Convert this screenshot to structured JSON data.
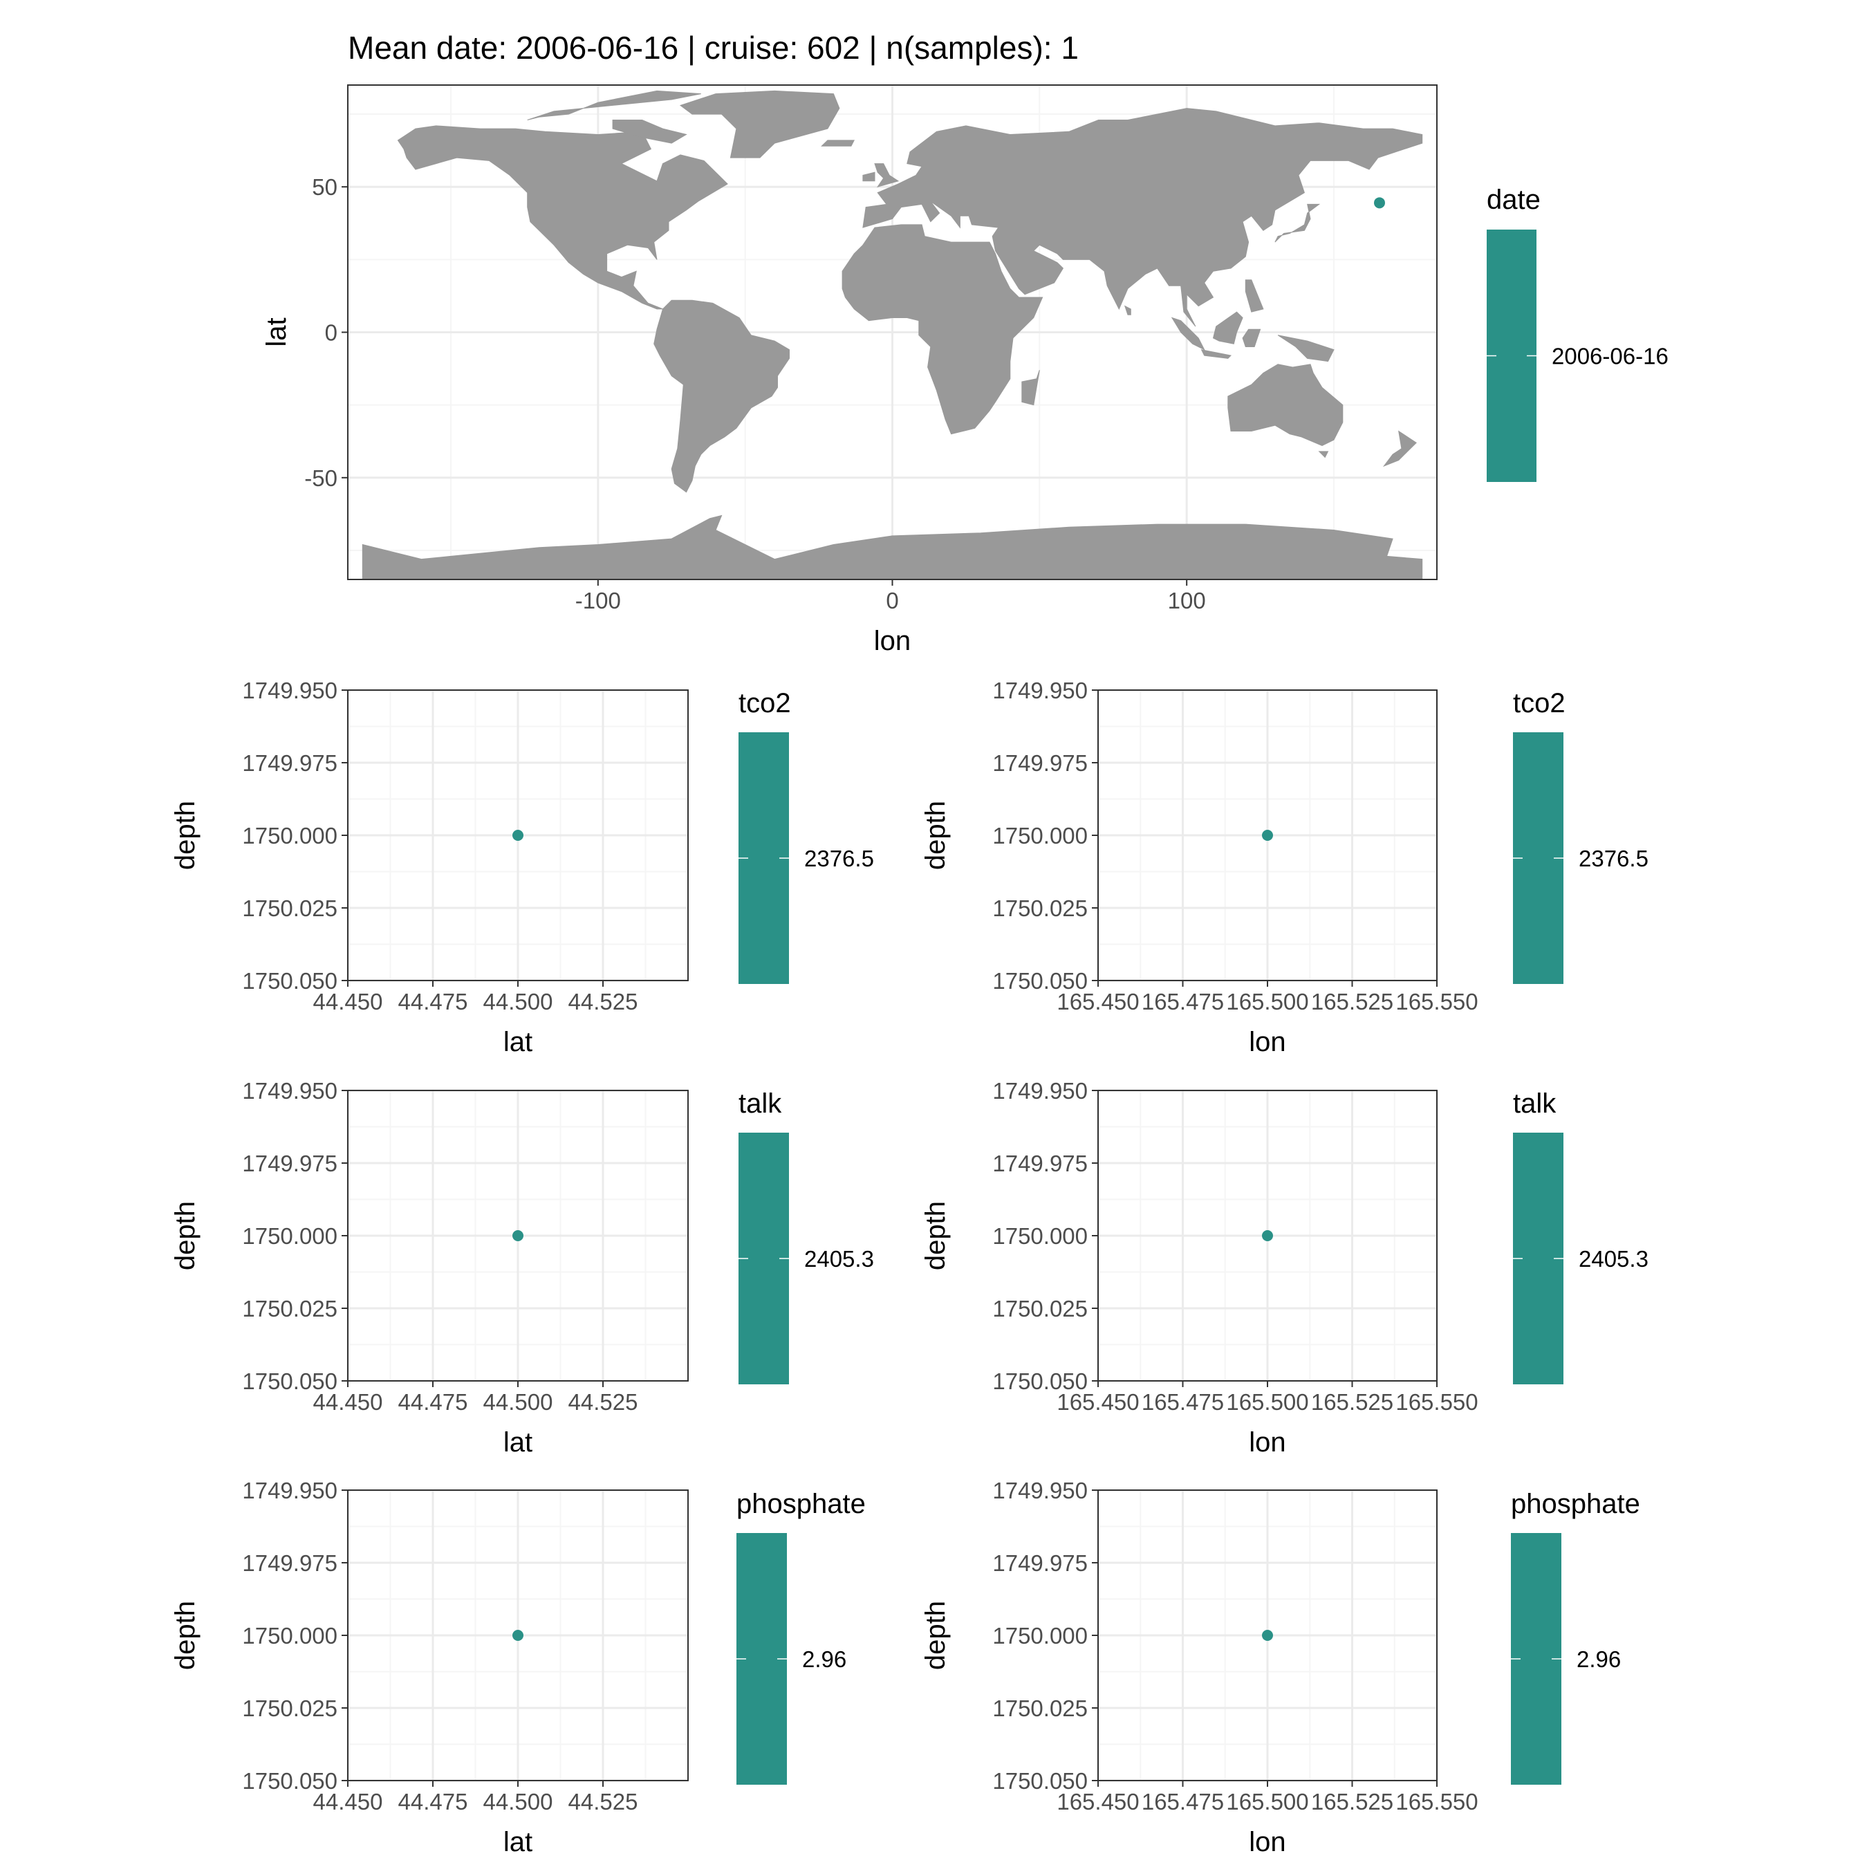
{
  "title": "Mean date: 2006-06-16 | cruise: 602 | n(samples): 1",
  "colors": {
    "point": "#2a9187",
    "land": "#999999",
    "grid_major": "#ebebeb",
    "grid_minor": "#f5f5f5",
    "frame": "#333333",
    "tick_text": "#4d4d4d",
    "background": "#ffffff"
  },
  "chart_data": [
    {
      "id": "map",
      "type": "scatter",
      "background": "world-land-map",
      "xlabel": "lon",
      "ylabel": "lat",
      "xlim": [
        -185,
        185
      ],
      "ylim": [
        -85,
        85
      ],
      "x_ticks": [
        -100,
        0,
        100
      ],
      "x_tick_labels": [
        "-100",
        "0",
        "100"
      ],
      "y_ticks": [
        50,
        0,
        -50
      ],
      "y_tick_labels": [
        "50",
        "0",
        "-50"
      ],
      "y_reversed": false,
      "grid": true,
      "points": [
        {
          "x": 165.5,
          "y": 44.5
        }
      ],
      "legend": {
        "title": "date",
        "label": "2006-06-16",
        "placement": "right"
      }
    },
    {
      "id": "tco2-lat",
      "type": "scatter",
      "xlabel": "lat",
      "ylabel": "depth",
      "xlim": [
        44.45,
        44.55
      ],
      "ylim": [
        1749.95,
        1750.05
      ],
      "y_reversed": true,
      "x_ticks": [
        44.45,
        44.475,
        44.5,
        44.525
      ],
      "x_tick_labels": [
        "44.450",
        "44.475",
        "44.500",
        "44.525"
      ],
      "y_ticks": [
        1749.95,
        1749.975,
        1750,
        1750.025,
        1750.05
      ],
      "y_tick_labels": [
        "1749.950",
        "1749.975",
        "1750.000",
        "1750.025",
        "1750.050"
      ],
      "grid": true,
      "points": [
        {
          "x": 44.5,
          "y": 1750.0
        }
      ],
      "legend": {
        "title": "tco2",
        "label": "2376.5",
        "placement": "right"
      }
    },
    {
      "id": "tco2-lon",
      "type": "scatter",
      "xlabel": "lon",
      "ylabel": "depth",
      "xlim": [
        165.45,
        165.55
      ],
      "ylim": [
        1749.95,
        1750.05
      ],
      "y_reversed": true,
      "x_ticks": [
        165.45,
        165.475,
        165.5,
        165.525,
        165.55
      ],
      "x_tick_labels": [
        "165.450",
        "165.475",
        "165.500",
        "165.525",
        "165.550"
      ],
      "y_ticks": [
        1749.95,
        1749.975,
        1750,
        1750.025,
        1750.05
      ],
      "y_tick_labels": [
        "1749.950",
        "1749.975",
        "1750.000",
        "1750.025",
        "1750.050"
      ],
      "grid": true,
      "points": [
        {
          "x": 165.5,
          "y": 1750.0
        }
      ],
      "legend": {
        "title": "tco2",
        "label": "2376.5",
        "placement": "right"
      }
    },
    {
      "id": "talk-lat",
      "type": "scatter",
      "xlabel": "lat",
      "ylabel": "depth",
      "xlim": [
        44.45,
        44.55
      ],
      "ylim": [
        1749.95,
        1750.05
      ],
      "y_reversed": true,
      "x_ticks": [
        44.45,
        44.475,
        44.5,
        44.525
      ],
      "x_tick_labels": [
        "44.450",
        "44.475",
        "44.500",
        "44.525"
      ],
      "y_ticks": [
        1749.95,
        1749.975,
        1750,
        1750.025,
        1750.05
      ],
      "y_tick_labels": [
        "1749.950",
        "1749.975",
        "1750.000",
        "1750.025",
        "1750.050"
      ],
      "grid": true,
      "points": [
        {
          "x": 44.5,
          "y": 1750.0
        }
      ],
      "legend": {
        "title": "talk",
        "label": "2405.3",
        "placement": "right"
      }
    },
    {
      "id": "talk-lon",
      "type": "scatter",
      "xlabel": "lon",
      "ylabel": "depth",
      "xlim": [
        165.45,
        165.55
      ],
      "ylim": [
        1749.95,
        1750.05
      ],
      "y_reversed": true,
      "x_ticks": [
        165.45,
        165.475,
        165.5,
        165.525,
        165.55
      ],
      "x_tick_labels": [
        "165.450",
        "165.475",
        "165.500",
        "165.525",
        "165.550"
      ],
      "y_ticks": [
        1749.95,
        1749.975,
        1750,
        1750.025,
        1750.05
      ],
      "y_tick_labels": [
        "1749.950",
        "1749.975",
        "1750.000",
        "1750.025",
        "1750.050"
      ],
      "grid": true,
      "points": [
        {
          "x": 165.5,
          "y": 1750.0
        }
      ],
      "legend": {
        "title": "talk",
        "label": "2405.3",
        "placement": "right"
      }
    },
    {
      "id": "phosphate-lat",
      "type": "scatter",
      "xlabel": "lat",
      "ylabel": "depth",
      "xlim": [
        44.45,
        44.55
      ],
      "ylim": [
        1749.95,
        1750.05
      ],
      "y_reversed": true,
      "x_ticks": [
        44.45,
        44.475,
        44.5,
        44.525
      ],
      "x_tick_labels": [
        "44.450",
        "44.475",
        "44.500",
        "44.525"
      ],
      "y_ticks": [
        1749.95,
        1749.975,
        1750,
        1750.025,
        1750.05
      ],
      "y_tick_labels": [
        "1749.950",
        "1749.975",
        "1750.000",
        "1750.025",
        "1750.050"
      ],
      "grid": true,
      "points": [
        {
          "x": 44.5,
          "y": 1750.0
        }
      ],
      "legend": {
        "title": "phosphate",
        "label": "2.96",
        "placement": "right"
      }
    },
    {
      "id": "phosphate-lon",
      "type": "scatter",
      "xlabel": "lon",
      "ylabel": "depth",
      "xlim": [
        165.45,
        165.55
      ],
      "ylim": [
        1749.95,
        1750.05
      ],
      "y_reversed": true,
      "x_ticks": [
        165.45,
        165.475,
        165.5,
        165.525,
        165.55
      ],
      "x_tick_labels": [
        "165.450",
        "165.475",
        "165.500",
        "165.525",
        "165.550"
      ],
      "y_ticks": [
        1749.95,
        1749.975,
        1750,
        1750.025,
        1750.05
      ],
      "y_tick_labels": [
        "1749.950",
        "1749.975",
        "1750.000",
        "1750.025",
        "1750.050"
      ],
      "grid": true,
      "points": [
        {
          "x": 165.5,
          "y": 1750.0
        }
      ],
      "legend": {
        "title": "phosphate",
        "label": "2.96",
        "placement": "right"
      }
    }
  ]
}
